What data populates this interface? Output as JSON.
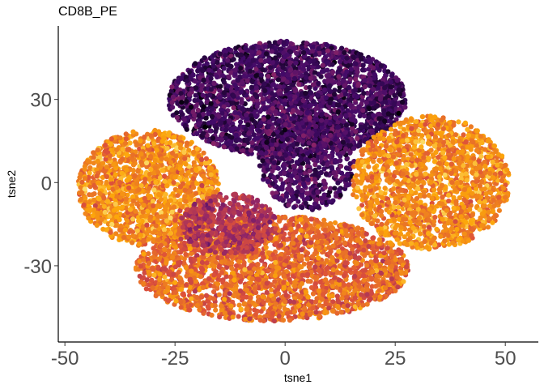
{
  "chart_data": {
    "type": "scatter",
    "title": "CD8B_PE",
    "xlabel": "tsne1",
    "ylabel": "tsne2",
    "xlim": [
      -51.5,
      57.5
    ],
    "ylim": [
      -57.5,
      56.5
    ],
    "x_ticks": [
      -50,
      -25,
      0,
      25,
      50
    ],
    "x_tick_labels": [
      "-50",
      "-25",
      "0",
      "25",
      "50"
    ],
    "y_ticks": [
      30,
      0,
      -30
    ],
    "y_tick_labels": [
      "30",
      "0",
      "-30"
    ],
    "grid": false,
    "legend": "none",
    "colormap": "inferno",
    "colormap_stops": [
      "#000004",
      "#420a68",
      "#932667",
      "#dd513a",
      "#fca50a",
      "#fcffa4"
    ],
    "clusters": [
      {
        "cx": 0.5,
        "cy": 30,
        "rx": 27,
        "ry": 21,
        "intensity": 0.2,
        "count": 2600
      },
      {
        "cx": 5,
        "cy": 8,
        "rx": 11,
        "ry": 18,
        "intensity": 0.22,
        "count": 700
      },
      {
        "cx": -31,
        "cy": -2,
        "rx": 16,
        "ry": 21,
        "intensity": 0.74,
        "count": 1500
      },
      {
        "cx": 33,
        "cy": 0,
        "rx": 18,
        "ry": 24,
        "intensity": 0.74,
        "count": 1700
      },
      {
        "cx": -3,
        "cy": -31,
        "rx": 31,
        "ry": 19,
        "intensity": 0.66,
        "count": 2400
      },
      {
        "cx": -13,
        "cy": -15,
        "rx": 11,
        "ry": 11,
        "intensity": 0.48,
        "count": 500
      }
    ]
  }
}
